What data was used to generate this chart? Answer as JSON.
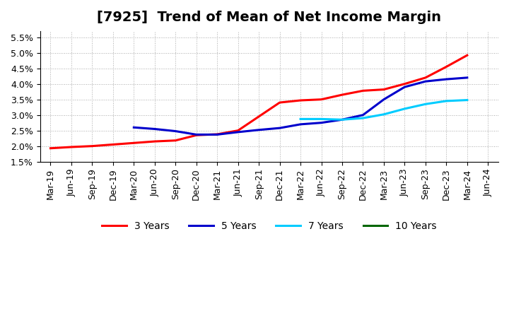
{
  "title": "[7925]  Trend of Mean of Net Income Margin",
  "x_labels": [
    "Mar-19",
    "Jun-19",
    "Sep-19",
    "Dec-19",
    "Mar-20",
    "Jun-20",
    "Sep-20",
    "Dec-20",
    "Mar-21",
    "Jun-21",
    "Sep-21",
    "Dec-21",
    "Mar-22",
    "Jun-22",
    "Sep-22",
    "Dec-22",
    "Mar-23",
    "Jun-23",
    "Sep-23",
    "Dec-23",
    "Mar-24",
    "Jun-24"
  ],
  "ylim": [
    0.015,
    0.057
  ],
  "yticks": [
    0.015,
    0.02,
    0.025,
    0.03,
    0.035,
    0.04,
    0.045,
    0.05,
    0.055
  ],
  "ytick_labels": [
    "1.5%",
    "2.0%",
    "2.5%",
    "3.0%",
    "3.5%",
    "4.0%",
    "4.5%",
    "5.0%",
    "5.5%"
  ],
  "series_order": [
    "3 Years",
    "5 Years",
    "7 Years",
    "10 Years"
  ],
  "series": {
    "3 Years": {
      "color": "#ff0000",
      "data_x": [
        0,
        1,
        2,
        3,
        4,
        5,
        6,
        7,
        8,
        9,
        10,
        11,
        12,
        13,
        14,
        15,
        16,
        17,
        18,
        19,
        20
      ],
      "data_y": [
        0.0193,
        0.0197,
        0.02,
        0.0205,
        0.021,
        0.0215,
        0.0218,
        0.0235,
        0.0238,
        0.025,
        0.0295,
        0.034,
        0.0347,
        0.035,
        0.0365,
        0.0378,
        0.0382,
        0.04,
        0.042,
        0.0455,
        0.0492
      ]
    },
    "5 Years": {
      "color": "#0000cc",
      "data_x": [
        4,
        5,
        6,
        7,
        8,
        9,
        10,
        11,
        12,
        13,
        14,
        15,
        16,
        17,
        18,
        19,
        20
      ],
      "data_y": [
        0.026,
        0.0255,
        0.0248,
        0.0237,
        0.0237,
        0.0245,
        0.0252,
        0.0258,
        0.027,
        0.0275,
        0.0285,
        0.03,
        0.035,
        0.039,
        0.0408,
        0.0415,
        0.042
      ]
    },
    "7 Years": {
      "color": "#00ccff",
      "data_x": [
        12,
        13,
        14,
        15,
        16,
        17,
        18,
        19,
        20
      ],
      "data_y": [
        0.0287,
        0.0287,
        0.0285,
        0.029,
        0.0302,
        0.032,
        0.0335,
        0.0345,
        0.0348
      ]
    },
    "10 Years": {
      "color": "#006600",
      "data_x": [],
      "data_y": []
    }
  },
  "background_color": "#ffffff",
  "grid_color": "#aaaaaa",
  "title_fontsize": 14,
  "tick_fontsize": 9,
  "legend_fontsize": 10,
  "line_width": 2.2
}
